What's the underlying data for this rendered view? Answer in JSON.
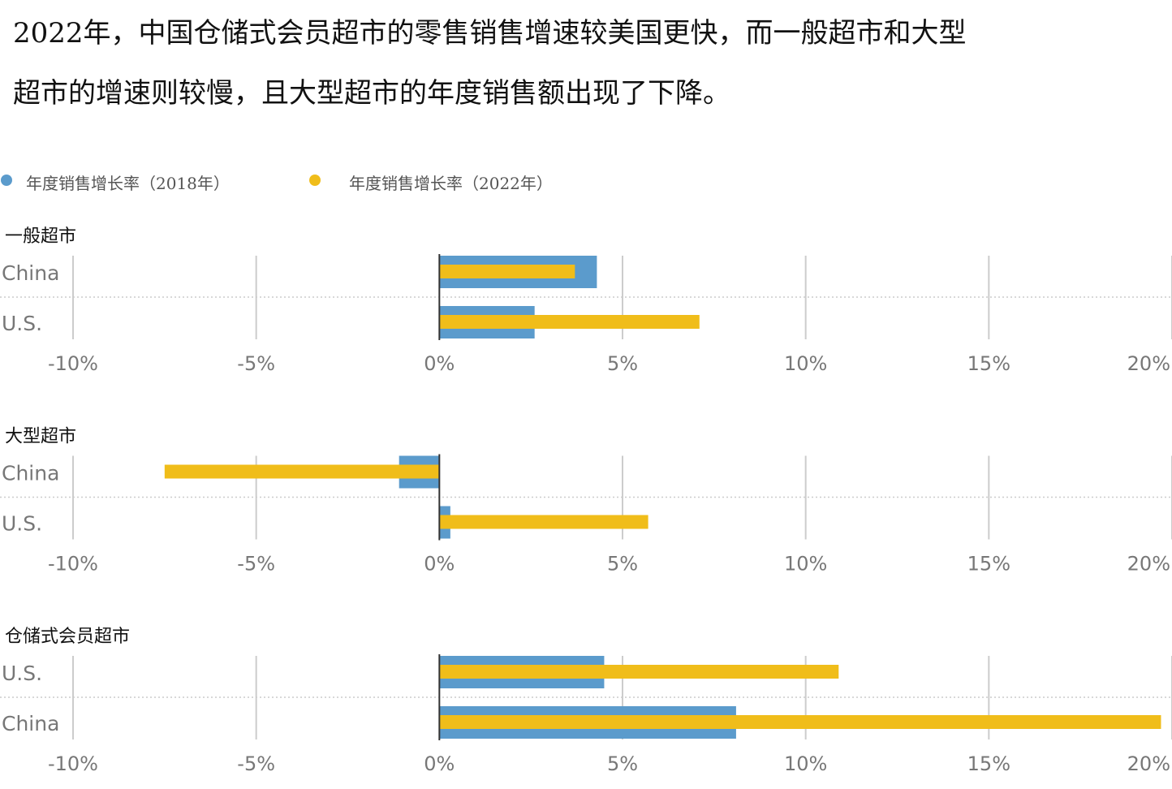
{
  "heading": "2022年，中国仓储式会员超市的零售销售增速较美国更快，而一般超市和大型超市的增速则较慢，且大型超市的年度销售额出现了下降。",
  "chart_data": {
    "type": "bar",
    "orientation": "horizontal",
    "legend": {
      "placement": "top-left",
      "entries": [
        "年度销售增长率（2018年）",
        "年度销售增长率（2022年）"
      ]
    },
    "colors": {
      "2018": "#5b9bcc",
      "2022": "#f0bd1a"
    },
    "xlim": [
      -10,
      20
    ],
    "xticks": [
      -10,
      -5,
      0,
      5,
      10,
      15,
      20
    ],
    "xtick_labels": [
      "-10%",
      "-5%",
      "0%",
      "5%",
      "10%",
      "15%",
      "20%"
    ],
    "grid": true,
    "panels": [
      {
        "title": "一般超市",
        "categories": [
          "China",
          "U.S."
        ],
        "series": [
          {
            "name": "年度销售增长率（2018年）",
            "values": [
              4.3,
              2.6
            ]
          },
          {
            "name": "年度销售增长率（2022年）",
            "values": [
              3.7,
              7.1
            ]
          }
        ]
      },
      {
        "title": "大型超市",
        "categories": [
          "China",
          "U.S."
        ],
        "series": [
          {
            "name": "年度销售增长率（2018年）",
            "values": [
              -1.1,
              0.3
            ]
          },
          {
            "name": "年度销售增长率（2022年）",
            "values": [
              -7.5,
              5.7
            ]
          }
        ]
      },
      {
        "title": "仓储式会员超市",
        "categories": [
          "U.S.",
          "China"
        ],
        "series": [
          {
            "name": "年度销售增长率（2018年）",
            "values": [
              4.5,
              8.1
            ]
          },
          {
            "name": "年度销售增长率（2022年）",
            "values": [
              10.9,
              19.7
            ]
          }
        ]
      }
    ]
  }
}
